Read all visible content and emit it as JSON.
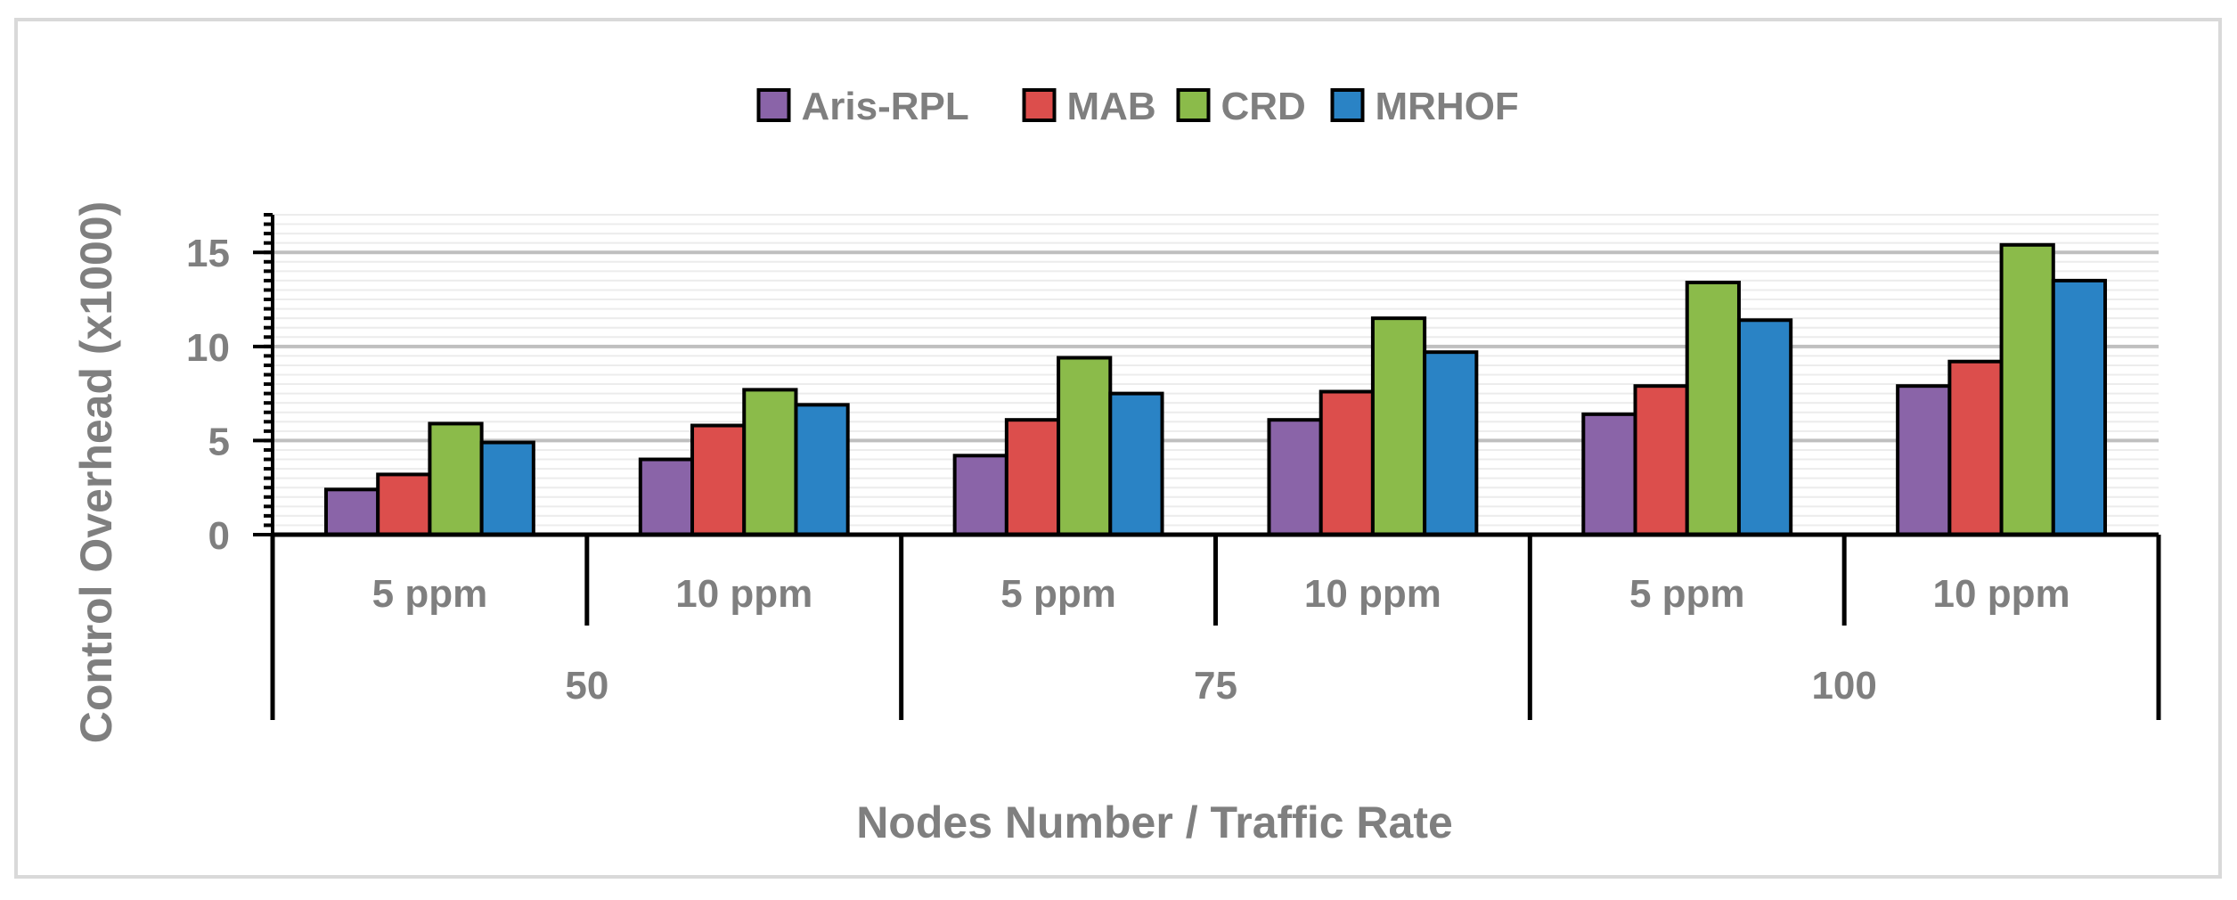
{
  "chart_data": {
    "type": "bar",
    "title": "",
    "xlabel": "Nodes Number / Traffic Rate",
    "ylabel": "Control Overhead (x1000)",
    "ylim": [
      0,
      17
    ],
    "y_ticks": [
      "0",
      "5",
      "10",
      "15"
    ],
    "y_tick_values": [
      0,
      5,
      10,
      15
    ],
    "minor_grid_step": 0.5,
    "grid": true,
    "legend_position": "top",
    "groups": [
      {
        "label": "50",
        "categories": [
          "5 ppm",
          "10 ppm"
        ]
      },
      {
        "label": "75",
        "categories": [
          "5 ppm",
          "10 ppm"
        ]
      },
      {
        "label": "100",
        "categories": [
          "5 ppm",
          "10 ppm"
        ]
      }
    ],
    "categories": [
      "5 ppm",
      "10 ppm",
      "5 ppm",
      "10 ppm",
      "5 ppm",
      "10 ppm"
    ],
    "series": [
      {
        "name": "Aris-RPL",
        "color": "#8a64a8",
        "values": [
          2.4,
          4.0,
          4.2,
          6.1,
          6.4,
          7.9
        ]
      },
      {
        "name": "MAB",
        "color": "#dc4e4c",
        "values": [
          3.2,
          5.8,
          6.1,
          7.6,
          7.9,
          9.2
        ]
      },
      {
        "name": "CRD",
        "color": "#8bbb4a",
        "values": [
          5.9,
          7.7,
          9.4,
          11.5,
          13.4,
          15.4
        ]
      },
      {
        "name": "MRHOF",
        "color": "#2a83c5",
        "values": [
          4.9,
          6.9,
          7.5,
          9.7,
          11.4,
          13.5
        ]
      }
    ]
  }
}
